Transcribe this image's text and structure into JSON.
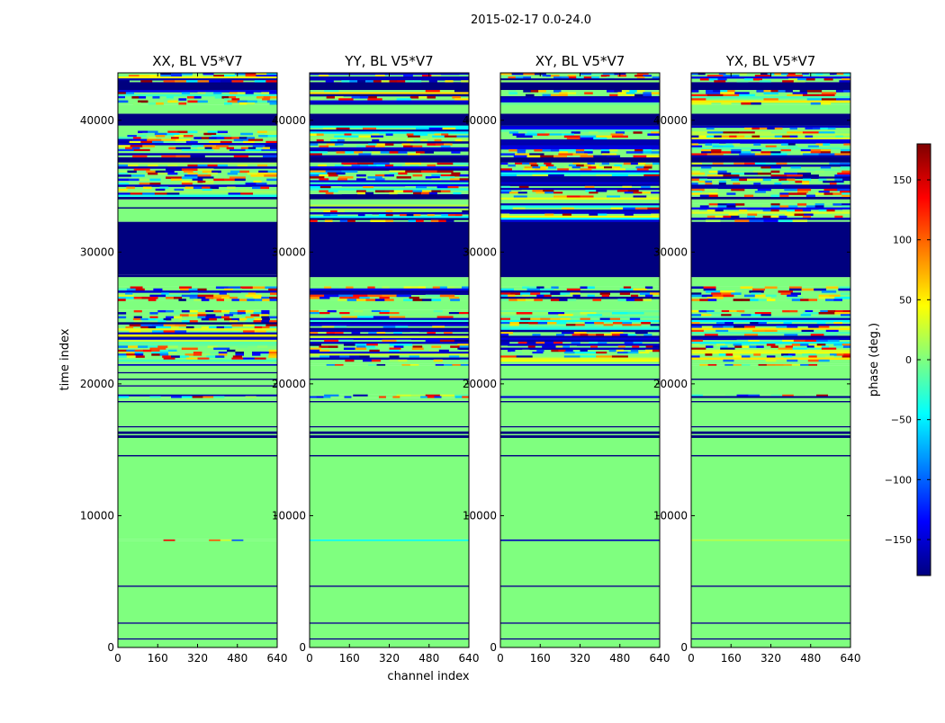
{
  "figure": {
    "suptitle": "2015-02-17 0.0-24.0",
    "xlabel": "channel index",
    "ylabel": "time index"
  },
  "colors": {
    "background": "#ffffff",
    "zero_phase": "#7fff7f",
    "neg_180_phase": "#00007f",
    "colormap": [
      "#00007f",
      "#0000ff",
      "#007fff",
      "#00ffff",
      "#7fff7f",
      "#ffff00",
      "#ff7f00",
      "#ff0000",
      "#7f0000"
    ]
  },
  "chart_data": [
    {
      "type": "heatmap",
      "title": "XX, BL V5*V7",
      "xlim": [
        0,
        640
      ],
      "ylim": [
        0,
        43600
      ],
      "xticks": [
        0,
        160,
        320,
        480,
        640
      ],
      "yticks": [
        0,
        10000,
        20000,
        30000,
        40000
      ],
      "bands": [
        {
          "from": 0,
          "to": 600,
          "value": 0
        },
        {
          "from": 600,
          "to": 700,
          "value": -180
        },
        {
          "from": 700,
          "to": 1800,
          "value": 0
        },
        {
          "from": 1800,
          "to": 1900,
          "value": -180
        },
        {
          "from": 1900,
          "to": 4600,
          "value": 0
        },
        {
          "from": 4600,
          "to": 4700,
          "value": -180
        },
        {
          "from": 4700,
          "to": 8100,
          "value": 0
        },
        {
          "from": 8100,
          "to": 8200,
          "value": "noise"
        },
        {
          "from": 8200,
          "to": 14500,
          "value": 0
        },
        {
          "from": 14500,
          "to": 14600,
          "value": -180
        },
        {
          "from": 14600,
          "to": 15900,
          "value": 0
        },
        {
          "from": 15900,
          "to": 16100,
          "value": -180
        },
        {
          "from": 16100,
          "to": 16200,
          "value": 0
        },
        {
          "from": 16200,
          "to": 16400,
          "value": -180
        },
        {
          "from": 16400,
          "to": 16700,
          "value": 0
        },
        {
          "from": 16700,
          "to": 16800,
          "value": -180
        },
        {
          "from": 16800,
          "to": 18600,
          "value": 0
        },
        {
          "from": 18600,
          "to": 18700,
          "value": -180
        },
        {
          "from": 18700,
          "to": 18950,
          "value": 0
        },
        {
          "from": 18950,
          "to": 19200,
          "value": "noise"
        },
        {
          "from": 19200,
          "to": 19800,
          "value": 0
        },
        {
          "from": 19800,
          "to": 19900,
          "value": -180
        },
        {
          "from": 19900,
          "to": 20300,
          "value": 0
        },
        {
          "from": 20300,
          "to": 20400,
          "value": -180
        },
        {
          "from": 20400,
          "to": 20800,
          "value": 0
        },
        {
          "from": 20800,
          "to": 20900,
          "value": -180
        },
        {
          "from": 20900,
          "to": 21400,
          "value": 0
        },
        {
          "from": 21400,
          "to": 21500,
          "value": "noise"
        },
        {
          "from": 21500,
          "to": 21700,
          "value": 0
        },
        {
          "from": 21700,
          "to": 23500,
          "value": "noise"
        },
        {
          "from": 23500,
          "to": 23600,
          "value": -180
        },
        {
          "from": 23600,
          "to": 25600,
          "value": "noise"
        },
        {
          "from": 25600,
          "to": 26300,
          "value": 0
        },
        {
          "from": 26300,
          "to": 27400,
          "value": "noise"
        },
        {
          "from": 27400,
          "to": 28100,
          "value": 0
        },
        {
          "from": 28100,
          "to": 28300,
          "value": -180
        },
        {
          "from": 28300,
          "to": 32300,
          "value": -180
        },
        {
          "from": 32300,
          "to": 33300,
          "value": 0
        },
        {
          "from": 33300,
          "to": 33400,
          "value": -180
        },
        {
          "from": 33400,
          "to": 34000,
          "value": 0
        },
        {
          "from": 34000,
          "to": 34200,
          "value": -180
        },
        {
          "from": 34200,
          "to": 36800,
          "value": "noise"
        },
        {
          "from": 36800,
          "to": 37200,
          "value": -180
        },
        {
          "from": 37200,
          "to": 39200,
          "value": "noise"
        },
        {
          "from": 39200,
          "to": 39600,
          "value": 0
        },
        {
          "from": 39600,
          "to": 40500,
          "value": -180
        },
        {
          "from": 40500,
          "to": 41200,
          "value": 0
        },
        {
          "from": 41200,
          "to": 42300,
          "value": "noise"
        },
        {
          "from": 42300,
          "to": 42900,
          "value": -180
        },
        {
          "from": 42900,
          "to": 43600,
          "value": "noise"
        }
      ]
    },
    {
      "type": "heatmap",
      "title": "YY, BL V5*V7",
      "xlim": [
        0,
        640
      ],
      "ylim": [
        0,
        43600
      ],
      "xticks": [
        0,
        160,
        320,
        480,
        640
      ],
      "yticks": [
        0,
        10000,
        20000,
        30000,
        40000
      ],
      "bands": [
        {
          "from": 0,
          "to": 600,
          "value": 0
        },
        {
          "from": 600,
          "to": 700,
          "value": -180
        },
        {
          "from": 700,
          "to": 1800,
          "value": 0
        },
        {
          "from": 1800,
          "to": 1900,
          "value": -180
        },
        {
          "from": 1900,
          "to": 4600,
          "value": 0
        },
        {
          "from": 4600,
          "to": 4700,
          "value": -180
        },
        {
          "from": 4700,
          "to": 8100,
          "value": 0
        },
        {
          "from": 8100,
          "to": 8200,
          "value": "noise"
        },
        {
          "from": 8200,
          "to": 14500,
          "value": 0
        },
        {
          "from": 14500,
          "to": 14600,
          "value": -180
        },
        {
          "from": 14600,
          "to": 15900,
          "value": 0
        },
        {
          "from": 15900,
          "to": 16100,
          "value": -180
        },
        {
          "from": 16100,
          "to": 16200,
          "value": 0
        },
        {
          "from": 16200,
          "to": 16400,
          "value": -180
        },
        {
          "from": 16400,
          "to": 16700,
          "value": 0
        },
        {
          "from": 16700,
          "to": 16800,
          "value": -180
        },
        {
          "from": 16800,
          "to": 18600,
          "value": 0
        },
        {
          "from": 18600,
          "to": 18700,
          "value": -180
        },
        {
          "from": 18700,
          "to": 18950,
          "value": 0
        },
        {
          "from": 18950,
          "to": 19200,
          "value": "noise"
        },
        {
          "from": 19200,
          "to": 20300,
          "value": 0
        },
        {
          "from": 20300,
          "to": 20400,
          "value": -180
        },
        {
          "from": 20400,
          "to": 21400,
          "value": 0
        },
        {
          "from": 21400,
          "to": 21500,
          "value": "noise"
        },
        {
          "from": 21500,
          "to": 21700,
          "value": 0
        },
        {
          "from": 21700,
          "to": 23500,
          "value": "noise"
        },
        {
          "from": 23500,
          "to": 25600,
          "value": "noise"
        },
        {
          "from": 25600,
          "to": 26300,
          "value": 0
        },
        {
          "from": 26300,
          "to": 27400,
          "value": "noise"
        },
        {
          "from": 27400,
          "to": 28100,
          "value": 0
        },
        {
          "from": 28100,
          "to": 32300,
          "value": -180
        },
        {
          "from": 32300,
          "to": 33600,
          "value": "noise"
        },
        {
          "from": 33600,
          "to": 34000,
          "value": 0
        },
        {
          "from": 34000,
          "to": 34400,
          "value": -180
        },
        {
          "from": 34400,
          "to": 36800,
          "value": "noise"
        },
        {
          "from": 36800,
          "to": 37200,
          "value": -180
        },
        {
          "from": 37200,
          "to": 39600,
          "value": "noise"
        },
        {
          "from": 39600,
          "to": 40500,
          "value": -180
        },
        {
          "from": 40500,
          "to": 41200,
          "value": 0
        },
        {
          "from": 41200,
          "to": 42300,
          "value": "noise"
        },
        {
          "from": 42300,
          "to": 42900,
          "value": -180
        },
        {
          "from": 42900,
          "to": 43600,
          "value": "noise"
        }
      ]
    },
    {
      "type": "heatmap",
      "title": "XY, BL V5*V7",
      "xlim": [
        0,
        640
      ],
      "ylim": [
        0,
        43600
      ],
      "xticks": [
        0,
        160,
        320,
        480,
        640
      ],
      "yticks": [
        0,
        10000,
        20000,
        30000,
        40000
      ],
      "bands": [
        {
          "from": 0,
          "to": 600,
          "value": 0
        },
        {
          "from": 600,
          "to": 700,
          "value": -180
        },
        {
          "from": 700,
          "to": 1800,
          "value": 0
        },
        {
          "from": 1800,
          "to": 1900,
          "value": -180
        },
        {
          "from": 1900,
          "to": 4600,
          "value": 0
        },
        {
          "from": 4600,
          "to": 4700,
          "value": -180
        },
        {
          "from": 4700,
          "to": 8100,
          "value": 0
        },
        {
          "from": 8100,
          "to": 8200,
          "value": "noise"
        },
        {
          "from": 8200,
          "to": 14500,
          "value": 0
        },
        {
          "from": 14500,
          "to": 14600,
          "value": -180
        },
        {
          "from": 14600,
          "to": 15900,
          "value": 0
        },
        {
          "from": 15900,
          "to": 16100,
          "value": -180
        },
        {
          "from": 16100,
          "to": 16200,
          "value": 0
        },
        {
          "from": 16200,
          "to": 16400,
          "value": -180
        },
        {
          "from": 16400,
          "to": 16700,
          "value": 0
        },
        {
          "from": 16700,
          "to": 16800,
          "value": -180
        },
        {
          "from": 16800,
          "to": 18600,
          "value": 0
        },
        {
          "from": 18600,
          "to": 18700,
          "value": -180
        },
        {
          "from": 18700,
          "to": 18950,
          "value": 0
        },
        {
          "from": 18950,
          "to": 19200,
          "value": "noise"
        },
        {
          "from": 19200,
          "to": 20300,
          "value": 0
        },
        {
          "from": 20300,
          "to": 20400,
          "value": -180
        },
        {
          "from": 20400,
          "to": 21400,
          "value": 0
        },
        {
          "from": 21400,
          "to": 21500,
          "value": "noise"
        },
        {
          "from": 21500,
          "to": 21700,
          "value": 0
        },
        {
          "from": 21700,
          "to": 25600,
          "value": "noise"
        },
        {
          "from": 25600,
          "to": 26300,
          "value": 0
        },
        {
          "from": 26300,
          "to": 27400,
          "value": "noise"
        },
        {
          "from": 27400,
          "to": 28100,
          "value": 0
        },
        {
          "from": 28100,
          "to": 32300,
          "value": -180
        },
        {
          "from": 32300,
          "to": 33700,
          "value": "noise"
        },
        {
          "from": 33700,
          "to": 34000,
          "value": 0
        },
        {
          "from": 34000,
          "to": 35600,
          "value": "noise"
        },
        {
          "from": 35600,
          "to": 36800,
          "value": "noise"
        },
        {
          "from": 36800,
          "to": 37200,
          "value": -180
        },
        {
          "from": 37200,
          "to": 39600,
          "value": "noise"
        },
        {
          "from": 39600,
          "to": 40500,
          "value": -180
        },
        {
          "from": 40500,
          "to": 41200,
          "value": 0
        },
        {
          "from": 41200,
          "to": 42300,
          "value": "noise"
        },
        {
          "from": 42300,
          "to": 42900,
          "value": -180
        },
        {
          "from": 42900,
          "to": 43600,
          "value": "noise"
        }
      ]
    },
    {
      "type": "heatmap",
      "title": "YX, BL V5*V7",
      "xlim": [
        0,
        640
      ],
      "ylim": [
        0,
        43600
      ],
      "xticks": [
        0,
        160,
        320,
        480,
        640
      ],
      "yticks": [
        0,
        10000,
        20000,
        30000,
        40000
      ],
      "bands": [
        {
          "from": 0,
          "to": 600,
          "value": 0
        },
        {
          "from": 600,
          "to": 700,
          "value": -180
        },
        {
          "from": 700,
          "to": 1800,
          "value": 0
        },
        {
          "from": 1800,
          "to": 1900,
          "value": -180
        },
        {
          "from": 1900,
          "to": 4600,
          "value": 0
        },
        {
          "from": 4600,
          "to": 4700,
          "value": -180
        },
        {
          "from": 4700,
          "to": 8100,
          "value": 0
        },
        {
          "from": 8100,
          "to": 8200,
          "value": "noise"
        },
        {
          "from": 8200,
          "to": 14500,
          "value": 0
        },
        {
          "from": 14500,
          "to": 14600,
          "value": -180
        },
        {
          "from": 14600,
          "to": 15900,
          "value": 0
        },
        {
          "from": 15900,
          "to": 16100,
          "value": -180
        },
        {
          "from": 16100,
          "to": 16200,
          "value": 0
        },
        {
          "from": 16200,
          "to": 16400,
          "value": -180
        },
        {
          "from": 16400,
          "to": 16700,
          "value": 0
        },
        {
          "from": 16700,
          "to": 16800,
          "value": -180
        },
        {
          "from": 16800,
          "to": 18600,
          "value": 0
        },
        {
          "from": 18600,
          "to": 18700,
          "value": -180
        },
        {
          "from": 18700,
          "to": 18950,
          "value": 0
        },
        {
          "from": 18950,
          "to": 19200,
          "value": "noise"
        },
        {
          "from": 19200,
          "to": 20300,
          "value": 0
        },
        {
          "from": 20300,
          "to": 20400,
          "value": -180
        },
        {
          "from": 20400,
          "to": 21400,
          "value": 0
        },
        {
          "from": 21400,
          "to": 21500,
          "value": "noise"
        },
        {
          "from": 21500,
          "to": 21700,
          "value": 0
        },
        {
          "from": 21700,
          "to": 25600,
          "value": "noise"
        },
        {
          "from": 25600,
          "to": 26300,
          "value": 0
        },
        {
          "from": 26300,
          "to": 27400,
          "value": "noise"
        },
        {
          "from": 27400,
          "to": 28100,
          "value": 0
        },
        {
          "from": 28100,
          "to": 32300,
          "value": -180
        },
        {
          "from": 32300,
          "to": 33700,
          "value": "noise"
        },
        {
          "from": 33700,
          "to": 34000,
          "value": 0
        },
        {
          "from": 34000,
          "to": 34200,
          "value": -180
        },
        {
          "from": 34200,
          "to": 36800,
          "value": "noise"
        },
        {
          "from": 36800,
          "to": 37200,
          "value": -180
        },
        {
          "from": 37200,
          "to": 39600,
          "value": "noise"
        },
        {
          "from": 39600,
          "to": 40500,
          "value": -180
        },
        {
          "from": 40500,
          "to": 41200,
          "value": 0
        },
        {
          "from": 41200,
          "to": 42300,
          "value": "noise"
        },
        {
          "from": 42300,
          "to": 42900,
          "value": -180
        },
        {
          "from": 42900,
          "to": 43600,
          "value": "noise"
        }
      ]
    },
    {
      "type": "colorbar",
      "label": "phase (deg.)",
      "range": [
        -180,
        180
      ],
      "ticks": [
        -150,
        -100,
        -50,
        0,
        50,
        100,
        150
      ]
    }
  ]
}
